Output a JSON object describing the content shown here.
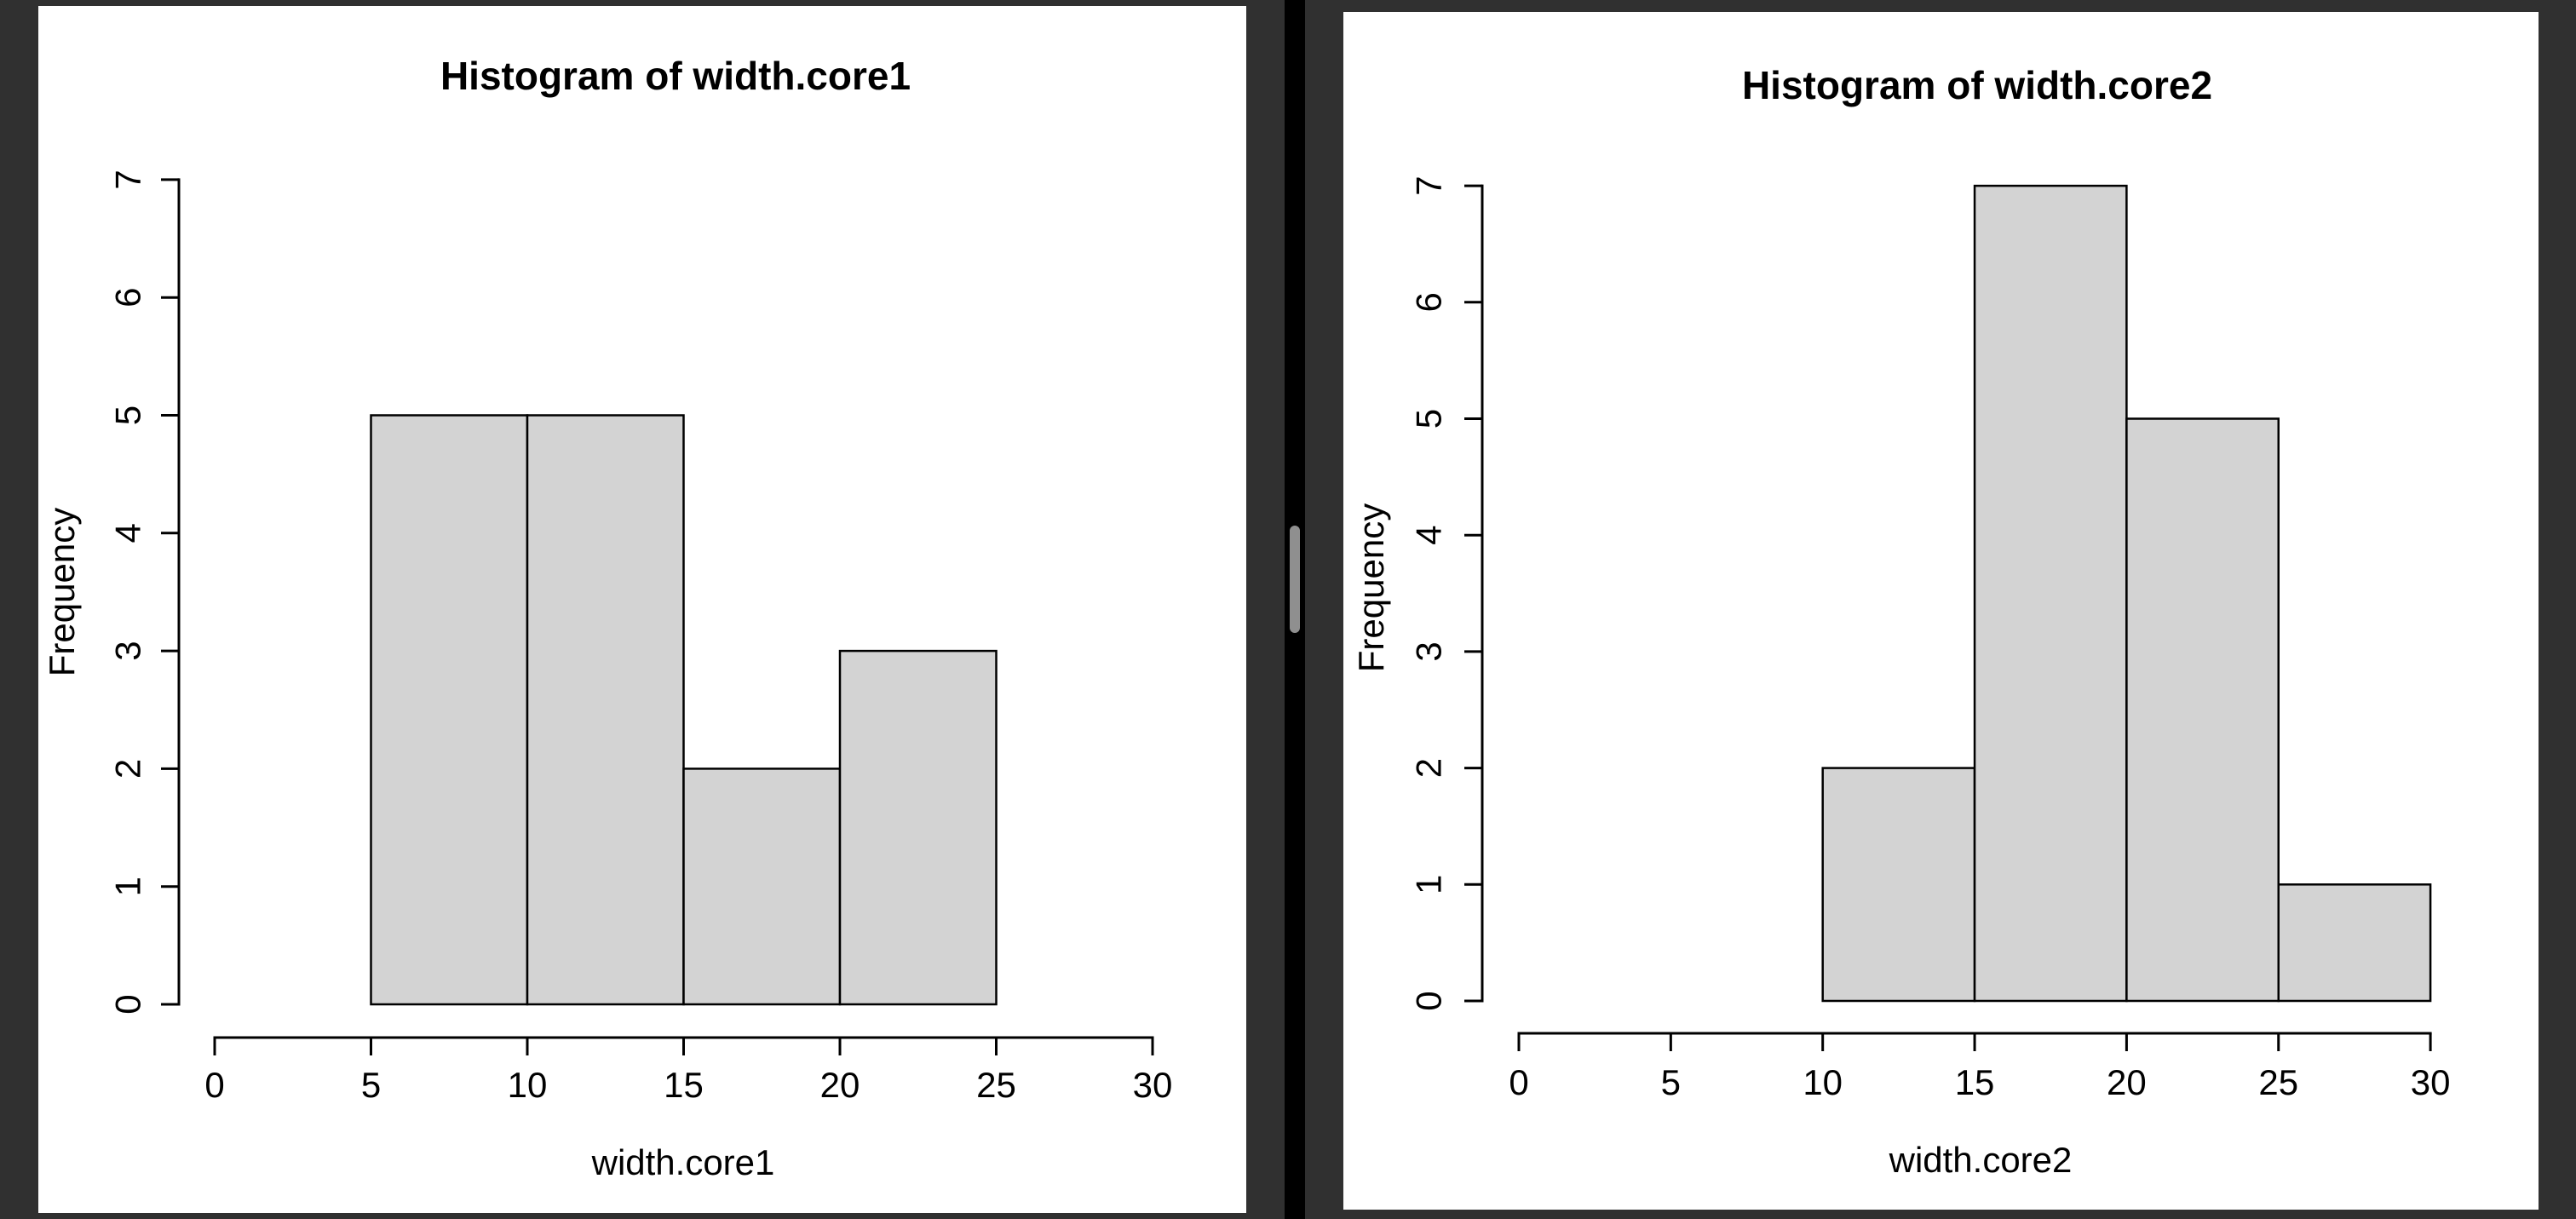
{
  "window": {
    "background_color": "#303030",
    "panel_color": "#ffffff",
    "divider": {
      "track_color": "#000000",
      "handle_color": "#8f8f8f"
    }
  },
  "chart_data": [
    {
      "type": "bar",
      "subtype": "histogram",
      "title": "Histogram of width.core1",
      "xlabel": "width.core1",
      "ylabel": "Frequency",
      "categories": [
        "5-10",
        "10-15",
        "15-20",
        "20-25"
      ],
      "bin_edges": [
        5,
        10,
        15,
        20,
        25
      ],
      "values": [
        5,
        5,
        2,
        3
      ],
      "x_ticks": [
        0,
        5,
        10,
        15,
        20,
        25,
        30
      ],
      "y_ticks": [
        0,
        1,
        2,
        3,
        4,
        5,
        6,
        7
      ],
      "xlim": [
        0,
        30
      ],
      "ylim": [
        0,
        7
      ],
      "grid": false,
      "legend": "none",
      "bar_fill": "#d3d3d3",
      "bar_stroke": "#000000",
      "axis_color": "#000000"
    },
    {
      "type": "bar",
      "subtype": "histogram",
      "title": "Histogram of width.core2",
      "xlabel": "width.core2",
      "ylabel": "Frequency",
      "categories": [
        "10-15",
        "15-20",
        "20-25",
        "25-30"
      ],
      "bin_edges": [
        10,
        15,
        20,
        25,
        30
      ],
      "values": [
        2,
        7,
        5,
        1
      ],
      "x_ticks": [
        0,
        5,
        10,
        15,
        20,
        25,
        30
      ],
      "y_ticks": [
        0,
        1,
        2,
        3,
        4,
        5,
        6,
        7
      ],
      "xlim": [
        0,
        30
      ],
      "ylim": [
        0,
        7
      ],
      "grid": false,
      "legend": "none",
      "bar_fill": "#d3d3d3",
      "bar_stroke": "#000000",
      "axis_color": "#000000"
    }
  ]
}
